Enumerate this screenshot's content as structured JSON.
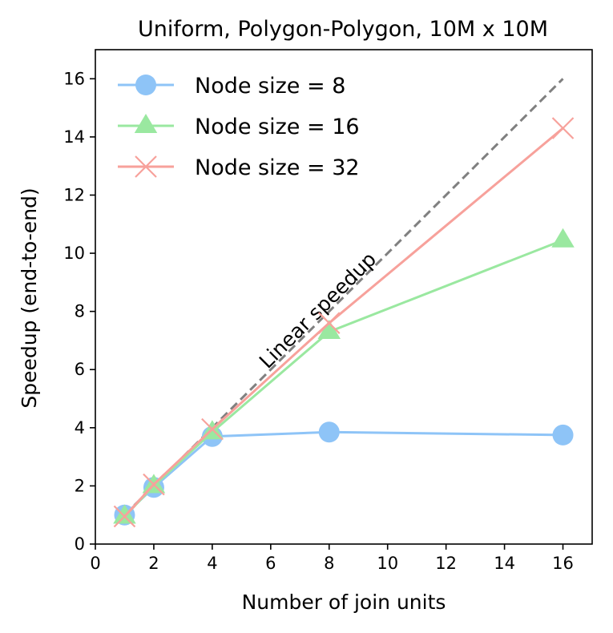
{
  "chart_data": {
    "type": "line",
    "title": "Uniform, Polygon-Polygon, 10M x 10M",
    "xlabel": "Number of join units",
    "ylabel": "Speedup (end-to-end)",
    "xlim": [
      0,
      17
    ],
    "ylim": [
      0,
      17
    ],
    "xticks": [
      0,
      2,
      4,
      6,
      8,
      10,
      12,
      14,
      16
    ],
    "yticks": [
      0,
      2,
      4,
      6,
      8,
      10,
      12,
      14,
      16
    ],
    "x": [
      1,
      2,
      4,
      8,
      16
    ],
    "series": [
      {
        "name": "Node size = 8",
        "values": [
          1.0,
          1.95,
          3.7,
          3.85,
          3.75
        ],
        "color": "#8ec4f7",
        "marker": "circle"
      },
      {
        "name": "Node size = 16",
        "values": [
          0.95,
          2.0,
          3.85,
          7.3,
          10.45
        ],
        "color": "#9ae8a0",
        "marker": "triangle"
      },
      {
        "name": "Node size = 32",
        "values": [
          0.95,
          2.05,
          3.95,
          7.6,
          14.3
        ],
        "color": "#f7a19b",
        "marker": "x"
      }
    ],
    "reference_line": {
      "label": "Linear speedup",
      "x": [
        1,
        16
      ],
      "values": [
        1,
        16
      ],
      "color": "#808080",
      "style": "dashed"
    },
    "legend_position": "top-left",
    "grid": false
  }
}
